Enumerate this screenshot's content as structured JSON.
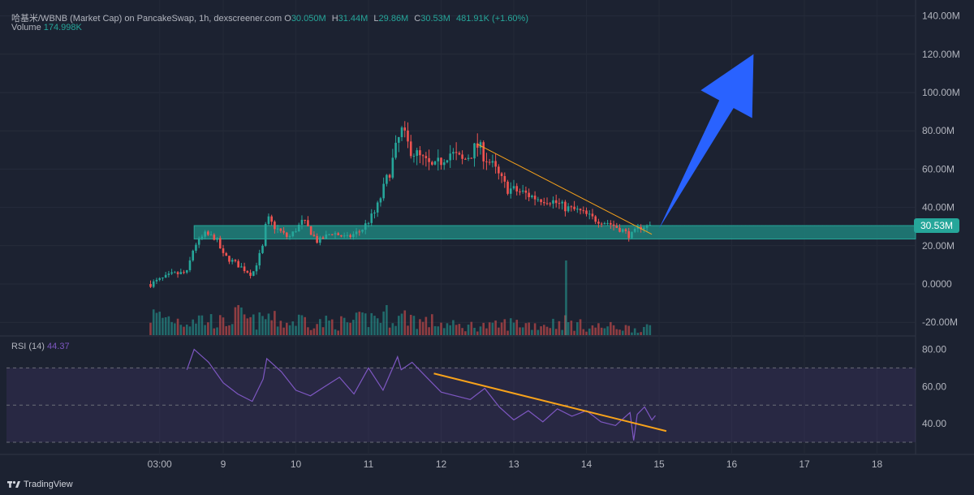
{
  "header": {
    "symbol": "哈基米/WBNB (Market Cap) on PancakeSwap, 1h, dexscreener.com",
    "o_label": "O",
    "o_value": "30.050M",
    "h_label": "H",
    "h_value": "31.44M",
    "l_label": "L",
    "l_value": "29.86M",
    "c_label": "C",
    "c_value": "30.53M",
    "change": "481.91K (+1.60%)",
    "volume_label": "Volume",
    "volume_value": "174.998K"
  },
  "rsi_header": {
    "label": "RSI (14)",
    "value": "44.37"
  },
  "price_badge": "30.53M",
  "watermark": "TradingView",
  "colors": {
    "background": "#1c2231",
    "up": "#26a69a",
    "down": "#ef5350",
    "rsi_line": "#7e57c2",
    "trendline": "#f7a21b",
    "arrow": "#2962ff"
  },
  "chart_data": [
    {
      "type": "candlestick",
      "title": "哈基米/WBNB (Market Cap) on PancakeSwap, 1h",
      "ylim": [
        -25,
        145
      ],
      "y_ticks": [
        "140.00M",
        "120.00M",
        "100.00M",
        "80.00M",
        "60.00M",
        "40.00M",
        "20.00M",
        "0.0000",
        "-20.00M"
      ],
      "x_ticks": [
        "03:00",
        "9",
        "10",
        "11",
        "12",
        "13",
        "14",
        "15",
        "16",
        "17",
        "18"
      ],
      "x_tick_times": [
        8.125,
        9,
        10,
        11,
        12,
        13,
        14,
        15,
        16,
        17,
        18
      ],
      "current_price": 30.53,
      "support_zone": [
        23.5,
        30.5
      ],
      "close_series": {
        "x": [
          8.0,
          8.3,
          8.5,
          8.6,
          8.75,
          8.9,
          9.0,
          9.2,
          9.4,
          9.55,
          9.6,
          9.7,
          9.9,
          10.1,
          10.3,
          10.5,
          10.7,
          10.9,
          11.1,
          11.3,
          11.45,
          11.55,
          11.7,
          11.9,
          12.1,
          12.3,
          12.5,
          12.7,
          12.9,
          13.1,
          13.3,
          13.5,
          13.7,
          13.9,
          14.1,
          14.3,
          14.5,
          14.6,
          14.75,
          14.9
        ],
        "y": [
          0,
          5,
          6,
          20,
          26,
          24,
          15,
          10,
          5,
          20,
          35,
          30,
          24,
          33,
          22,
          27,
          24,
          28,
          38,
          60,
          80,
          72,
          66,
          60,
          69,
          64,
          72,
          62,
          50,
          48,
          45,
          44,
          40,
          38,
          34,
          32,
          28,
          25,
          30,
          30.53
        ]
      },
      "volume_series": {
        "x": [
          8.0,
          8.3,
          8.5,
          8.6,
          8.75,
          8.9,
          9.0,
          9.2,
          9.4,
          9.55,
          9.6,
          9.7,
          9.9,
          10.1,
          10.3,
          10.5,
          10.7,
          10.9,
          11.1,
          11.3,
          11.45,
          11.55,
          11.7,
          11.9,
          12.1,
          12.3,
          12.5,
          12.7,
          12.9,
          13.1,
          13.3,
          13.5,
          13.7,
          13.9,
          14.1,
          14.3,
          14.5,
          14.6,
          14.75,
          14.9
        ],
        "values": [
          12,
          10,
          8,
          11,
          9,
          9,
          7,
          12,
          8,
          9,
          12,
          9,
          7,
          10,
          7,
          8,
          7,
          9,
          11,
          12,
          10,
          12,
          8,
          8,
          6,
          5,
          6,
          5,
          7,
          7,
          6,
          7,
          8,
          6,
          5,
          5,
          5,
          4,
          4,
          4
        ]
      },
      "trendline": {
        "start": [
          12.5,
          73
        ],
        "end": [
          14.9,
          26
        ]
      },
      "arrow": {
        "start": [
          15.0,
          29
        ],
        "end": [
          16.3,
          120
        ]
      }
    },
    {
      "type": "line",
      "title": "RSI (14)",
      "ylim": [
        30,
        83
      ],
      "y_ticks": [
        "80.00",
        "60.00",
        "40.00"
      ],
      "bands": [
        30,
        50,
        70
      ],
      "x": [
        8.5,
        8.6,
        8.8,
        9.0,
        9.2,
        9.4,
        9.55,
        9.6,
        9.8,
        10.0,
        10.2,
        10.4,
        10.6,
        10.8,
        11.0,
        11.2,
        11.4,
        11.45,
        11.6,
        11.8,
        12.0,
        12.2,
        12.4,
        12.6,
        12.8,
        13.0,
        13.2,
        13.4,
        13.6,
        13.8,
        14.0,
        14.2,
        14.4,
        14.6,
        14.65,
        14.7,
        14.8,
        14.9,
        14.95
      ],
      "y": [
        69,
        80,
        73,
        62,
        56,
        52,
        64,
        75,
        68,
        58,
        55,
        60,
        65,
        56,
        70,
        58,
        76,
        69,
        73,
        65,
        57,
        55,
        53,
        59,
        49,
        42,
        47,
        41,
        48,
        44,
        47,
        41,
        39,
        46,
        31,
        45,
        49,
        42,
        44.37
      ],
      "trendline": {
        "start": [
          11.9,
          67
        ],
        "end": [
          15.1,
          36
        ]
      }
    }
  ]
}
